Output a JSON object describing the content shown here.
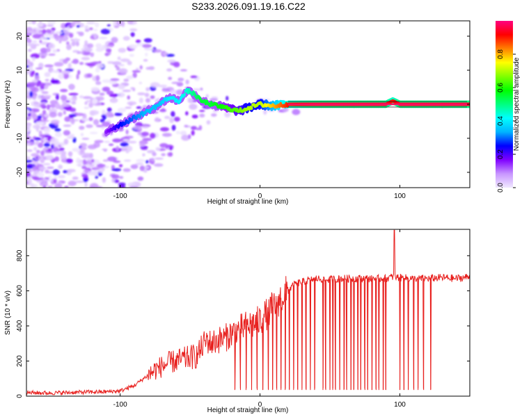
{
  "figure": {
    "title": "S233.2026.091.19.16.C22"
  },
  "chart_data": [
    {
      "type": "heatmap",
      "xlabel": "Height of straight line (km)",
      "ylabel": "Frequency (Hz)",
      "xlim": [
        -167,
        150
      ],
      "ylim": [
        -24.5,
        24.5
      ],
      "x_ticks": [
        -100,
        0,
        100
      ],
      "y_ticks": [
        -20,
        -10,
        0,
        10,
        20
      ],
      "colorbar": {
        "label": "Normalized spectral amplitude",
        "range": [
          0,
          1
        ],
        "ticks": [
          0.0,
          0.2,
          0.4,
          0.6,
          0.8
        ],
        "colors": [
          "#f0e8ff",
          "#c896ff",
          "#8000ff",
          "#0000ff",
          "#00b4ff",
          "#00ffff",
          "#00ff80",
          "#00ff00",
          "#80ff00",
          "#ffff00",
          "#ff8000",
          "#ff0000",
          "#ff0080"
        ]
      },
      "ridge": {
        "x": [
          -110,
          -100,
          -90,
          -80,
          -72,
          -65,
          -58,
          -52,
          -47,
          -42,
          -35,
          -25,
          -15,
          -8,
          0,
          10,
          20,
          40,
          60,
          80,
          90,
          95,
          100,
          150
        ],
        "freq": [
          -8,
          -6,
          -4,
          -2,
          0,
          2,
          1,
          4,
          3,
          1,
          0,
          -1,
          -2,
          -1,
          0,
          -0.5,
          0,
          0,
          0,
          0,
          0,
          1,
          0,
          0
        ],
        "amplitude": [
          0.15,
          0.25,
          0.3,
          0.35,
          0.35,
          0.4,
          0.4,
          0.45,
          0.5,
          0.55,
          0.55,
          0.6,
          0.65,
          0.7,
          0.7,
          0.8,
          0.9,
          0.95,
          0.95,
          0.95,
          0.95,
          0.9,
          0.95,
          0.95
        ]
      }
    },
    {
      "type": "line",
      "xlabel": "Height of straight line (km)",
      "ylabel": "SNR (10 * v/v)",
      "xlim": [
        -167,
        150
      ],
      "ylim": [
        0,
        950
      ],
      "x_ticks": [
        -100,
        0,
        100
      ],
      "y_ticks": [
        0,
        200,
        400,
        600,
        800
      ],
      "series": [
        {
          "color": "#e8201e",
          "x": [
            -167,
            -150,
            -130,
            -110,
            -100,
            -90,
            -85,
            -80,
            -75,
            -70,
            -65,
            -60,
            -55,
            -50,
            -45,
            -40,
            -38,
            -35,
            -30,
            -25,
            -20,
            -15,
            -10,
            -5,
            0,
            5,
            10,
            15,
            20,
            25,
            30,
            35,
            40,
            45,
            50,
            60,
            70,
            80,
            90,
            95,
            100,
            110,
            120,
            130,
            140,
            150
          ],
          "values": [
            20,
            18,
            22,
            25,
            30,
            60,
            90,
            120,
            150,
            170,
            190,
            200,
            210,
            220,
            230,
            300,
            320,
            300,
            320,
            330,
            360,
            380,
            400,
            410,
            430,
            470,
            520,
            560,
            600,
            640,
            650,
            660,
            670,
            665,
            665,
            670,
            670,
            670,
            670,
            680,
            675,
            670,
            670,
            675,
            670,
            680
          ],
          "dropouts_x": [
            -18,
            -14,
            -10,
            -6,
            -2,
            2,
            6,
            9,
            12,
            15,
            18,
            21,
            24,
            27,
            30,
            33,
            36,
            39,
            45,
            47,
            50,
            52,
            54,
            57,
            60,
            62,
            65,
            67,
            70,
            72,
            75,
            77,
            80,
            83,
            85,
            88,
            90,
            100,
            103,
            106,
            110,
            113,
            117,
            122
          ],
          "spike": {
            "x": 96,
            "value": 945
          }
        }
      ]
    }
  ]
}
